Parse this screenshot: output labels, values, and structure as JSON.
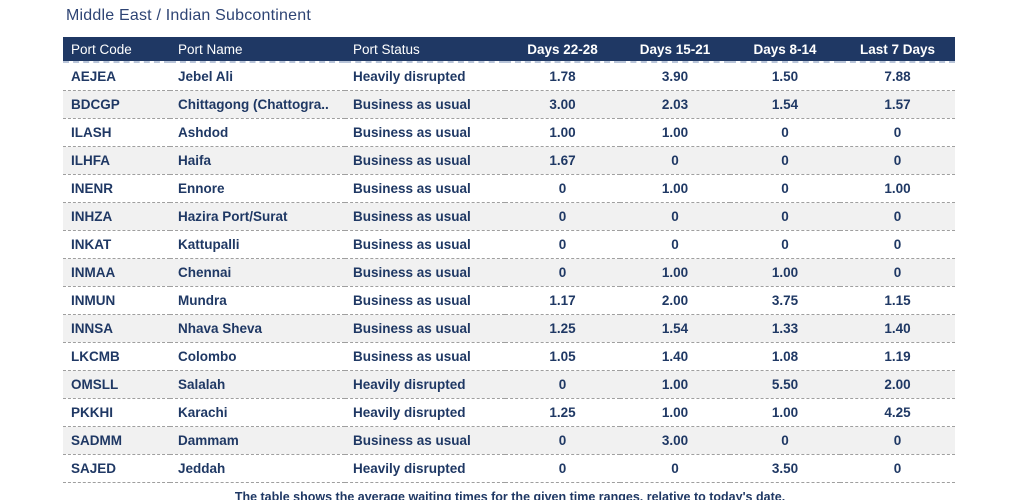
{
  "title": "Middle East / Indian Subcontinent",
  "footer": "The table shows the average waiting times for the given time ranges, relative to today's date.",
  "colors": {
    "header_bg": "#1f3864",
    "header_text": "#ffffff",
    "body_text": "#1f3864",
    "title_text": "#2e4474",
    "alt_row_bg": "#f1f1f1",
    "row_divider": "#9f9f9f"
  },
  "table": {
    "columns": [
      {
        "key": "port-code",
        "label": "Port Code",
        "type": "txt"
      },
      {
        "key": "port-name",
        "label": "Port Name",
        "type": "txt"
      },
      {
        "key": "port-status",
        "label": "Port Status",
        "type": "txt"
      },
      {
        "key": "days-22-28",
        "label": "Days 22-28",
        "type": "num"
      },
      {
        "key": "days-15-21",
        "label": "Days 15-21",
        "type": "num"
      },
      {
        "key": "days-8-14",
        "label": "Days 8-14",
        "type": "num"
      },
      {
        "key": "last-7-days",
        "label": "Last 7 Days",
        "type": "num"
      }
    ],
    "rows": [
      {
        "code": "AEJEA",
        "name": "Jebel Ali",
        "status": "Heavily disrupted",
        "values": [
          "1.78",
          "3.90",
          "1.50",
          "7.88"
        ]
      },
      {
        "code": "BDCGP",
        "name": "Chittagong (Chattogra..",
        "status": "Business as usual",
        "values": [
          "3.00",
          "2.03",
          "1.54",
          "1.57"
        ]
      },
      {
        "code": "ILASH",
        "name": "Ashdod",
        "status": "Business as usual",
        "values": [
          "1.00",
          "1.00",
          "0",
          "0"
        ]
      },
      {
        "code": "ILHFA",
        "name": "Haifa",
        "status": "Business as usual",
        "values": [
          "1.67",
          "0",
          "0",
          "0"
        ]
      },
      {
        "code": "INENR",
        "name": "Ennore",
        "status": "Business as usual",
        "values": [
          "0",
          "1.00",
          "0",
          "1.00"
        ]
      },
      {
        "code": "INHZA",
        "name": "Hazira Port/Surat",
        "status": "Business as usual",
        "values": [
          "0",
          "0",
          "0",
          "0"
        ]
      },
      {
        "code": "INKAT",
        "name": "Kattupalli",
        "status": "Business as usual",
        "values": [
          "0",
          "0",
          "0",
          "0"
        ]
      },
      {
        "code": "INMAA",
        "name": "Chennai",
        "status": "Business as usual",
        "values": [
          "0",
          "1.00",
          "1.00",
          "0"
        ]
      },
      {
        "code": "INMUN",
        "name": "Mundra",
        "status": "Business as usual",
        "values": [
          "1.17",
          "2.00",
          "3.75",
          "1.15"
        ]
      },
      {
        "code": "INNSA",
        "name": "Nhava Sheva",
        "status": "Business as usual",
        "values": [
          "1.25",
          "1.54",
          "1.33",
          "1.40"
        ]
      },
      {
        "code": "LKCMB",
        "name": "Colombo",
        "status": "Business as usual",
        "values": [
          "1.05",
          "1.40",
          "1.08",
          "1.19"
        ]
      },
      {
        "code": "OMSLL",
        "name": "Salalah",
        "status": "Heavily disrupted",
        "values": [
          "0",
          "1.00",
          "5.50",
          "2.00"
        ]
      },
      {
        "code": "PKKHI",
        "name": "Karachi",
        "status": "Heavily disrupted",
        "values": [
          "1.25",
          "1.00",
          "1.00",
          "4.25"
        ]
      },
      {
        "code": "SADMM",
        "name": "Dammam",
        "status": "Business as usual",
        "values": [
          "0",
          "3.00",
          "0",
          "0"
        ]
      },
      {
        "code": "SAJED",
        "name": "Jeddah",
        "status": "Heavily disrupted",
        "values": [
          "0",
          "0",
          "3.50",
          "0"
        ]
      }
    ]
  }
}
